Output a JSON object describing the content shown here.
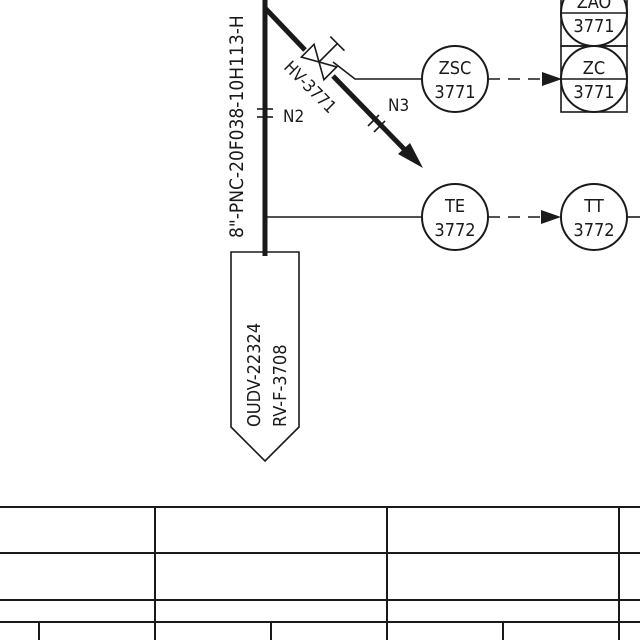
{
  "diagram": {
    "main_line_label": "8\"-PNC-20F038-10H113-H",
    "offpage": {
      "line1": "OUDV-22324",
      "line2": "RV-F-3708"
    },
    "nozzles": {
      "n2": "N2",
      "n3": "N3"
    },
    "valve_tag": "HV-3771",
    "instruments": {
      "zsc": {
        "func": "ZSC",
        "loop": "3771"
      },
      "zc": {
        "func": "ZC",
        "loop": "3771"
      },
      "za": {
        "func": "ZAO",
        "loop": "3771"
      },
      "te": {
        "func": "TE",
        "loop": "3772"
      },
      "tt": {
        "func": "TT",
        "loop": "3772"
      }
    }
  }
}
